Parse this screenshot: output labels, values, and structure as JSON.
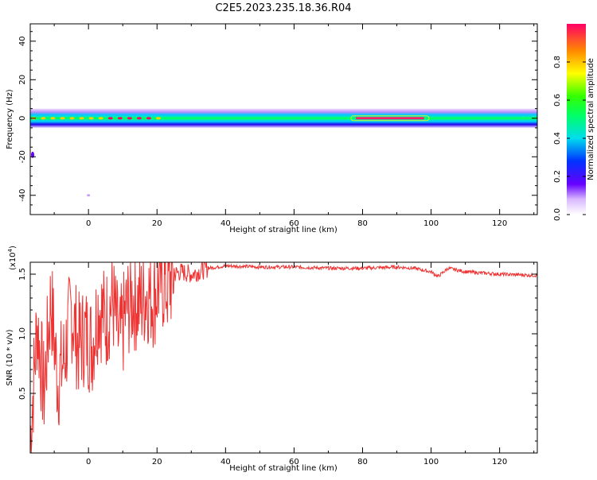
{
  "title": "C2E5.2023.235.18.36.R04",
  "colorbar": {
    "label": "Normalized spectral amplitude",
    "ticks": [
      "0.0",
      "0.2",
      "0.4",
      "0.6",
      "0.8"
    ]
  },
  "chart_data": [
    {
      "type": "heatmap",
      "title": "C2E5.2023.235.18.36.R04",
      "xlabel": "Height of straight line (km)",
      "ylabel": "Frequency (Hz)",
      "xlim": [
        -17,
        131
      ],
      "ylim": [
        -50,
        49
      ],
      "x_ticks": [
        "0",
        "20",
        "40",
        "60",
        "80",
        "100",
        "120"
      ],
      "y_ticks": [
        "40",
        "20",
        "0",
        "-20",
        "-40"
      ],
      "band_center_hz": 0,
      "band_halfwidth_hz": 4,
      "peak_regions_km": [
        [
          78,
          98
        ]
      ],
      "colorbar_range": [
        0,
        1
      ]
    },
    {
      "type": "line",
      "xlabel": "Height of straight line (km)",
      "ylabel": "SNR (10 * v/v)",
      "y_multiplier": "(x10",
      "y_multiplier_exp": "4",
      "y_multiplier_close": ")",
      "xlim": [
        -17,
        131
      ],
      "ylim": [
        0,
        1.6
      ],
      "x_ticks": [
        "0",
        "20",
        "40",
        "60",
        "80",
        "100",
        "120"
      ],
      "y_ticks": [
        "1.5",
        "1.0",
        "0.5"
      ],
      "series": [
        {
          "color": "#ee3333",
          "x": [
            -17,
            -15,
            -13,
            -11,
            -9,
            -7,
            -5,
            -3,
            -1,
            1,
            3,
            5,
            7,
            9,
            11,
            13,
            15,
            17,
            19,
            21,
            23,
            25,
            27,
            30,
            35,
            40,
            50,
            60,
            70,
            80,
            90,
            95,
            100,
            102,
            105,
            110,
            120,
            131
          ],
          "y": [
            0.1,
            1.1,
            0.5,
            1.3,
            0.6,
            0.8,
            1.2,
            0.9,
            1.0,
            0.9,
            1.25,
            1.1,
            1.3,
            0.9,
            1.2,
            1.3,
            1.25,
            1.35,
            1.3,
            1.45,
            1.4,
            1.5,
            1.52,
            1.5,
            1.55,
            1.57,
            1.56,
            1.56,
            1.55,
            1.55,
            1.56,
            1.55,
            1.52,
            1.48,
            1.55,
            1.52,
            1.5,
            1.49
          ]
        }
      ]
    }
  ]
}
